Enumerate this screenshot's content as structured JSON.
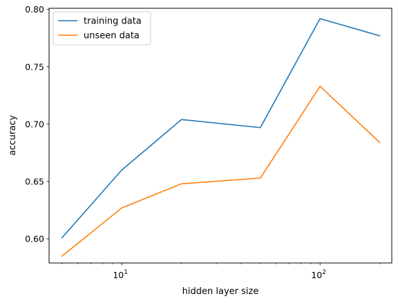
{
  "chart_data": {
    "type": "line",
    "xlabel": "hidden layer size",
    "ylabel": "accuracy",
    "x_scale": "log",
    "x": [
      5,
      10,
      20,
      50,
      100,
      200
    ],
    "xlim": [
      4.3,
      230
    ],
    "ylim": [
      0.579,
      0.801
    ],
    "y_ticks": [
      0.6,
      0.65,
      0.7,
      0.75,
      0.8
    ],
    "y_tick_labels": [
      "0.60",
      "0.65",
      "0.70",
      "0.75",
      "0.80"
    ],
    "x_tick_labels": [
      {
        "base": "10",
        "exp": "1",
        "value": 10
      },
      {
        "base": "10",
        "exp": "2",
        "value": 100
      }
    ],
    "legend_position": "upper-left",
    "series": [
      {
        "name": "training data",
        "color": "#1f77b4",
        "values": [
          0.601,
          0.66,
          0.704,
          0.697,
          0.792,
          0.777
        ]
      },
      {
        "name": "unseen data",
        "color": "#ff7f0e",
        "values": [
          0.585,
          0.627,
          0.648,
          0.653,
          0.733,
          0.684
        ]
      }
    ]
  }
}
